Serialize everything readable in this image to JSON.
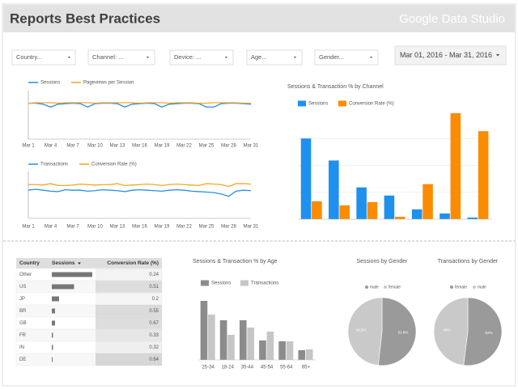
{
  "header": {
    "title": "Reports Best Practices",
    "logo": "Google Data Studio"
  },
  "filters": [
    "Country...",
    "Channel: ...",
    "Device: ...",
    "Age...",
    "Gender..."
  ],
  "date_range": "Mar 01, 2016 - Mar 31, 2016",
  "chart_data": [
    {
      "type": "line",
      "categories": [
        "Mar 1",
        null,
        null,
        "Mar 4",
        null,
        null,
        "Mar 7",
        null,
        null,
        "Mar 10",
        null,
        null,
        "Mar 13",
        null,
        null,
        "Mar 16",
        null,
        null,
        "Mar 19",
        null,
        null,
        "Mar 22",
        null,
        null,
        "Mar 25",
        null,
        null,
        "Mar 28",
        null,
        null,
        "Mar 31"
      ],
      "ylim": [
        0,
        100
      ],
      "series": [
        {
          "name": "Sessions",
          "color": "#2a8ee8",
          "values": [
            74,
            74,
            72,
            66,
            72,
            73,
            74,
            73,
            66,
            73,
            74,
            74,
            73,
            66,
            72,
            73,
            74,
            73,
            66,
            72,
            73,
            74,
            74,
            73,
            66,
            66,
            73,
            74,
            74,
            73,
            72
          ]
        },
        {
          "name": "Pageviews per Session",
          "color": "#f5a623",
          "values": [
            74,
            75,
            75,
            75,
            74,
            75,
            75,
            75,
            75,
            74,
            75,
            75,
            75,
            75,
            75,
            74,
            75,
            75,
            75,
            74,
            75,
            75,
            75,
            74,
            74,
            75,
            75,
            75,
            75,
            74,
            74
          ]
        }
      ]
    },
    {
      "type": "line",
      "categories": [
        "Mar 1",
        null,
        null,
        "Mar 4",
        null,
        null,
        "Mar 7",
        null,
        null,
        "Mar 10",
        null,
        null,
        "Mar 13",
        null,
        null,
        "Mar 16",
        null,
        null,
        "Mar 19",
        null,
        null,
        "Mar 22",
        null,
        null,
        "Mar 25",
        null,
        null,
        "Mar 28",
        null,
        null,
        "Mar 31"
      ],
      "ylim": [
        0,
        100
      ],
      "series": [
        {
          "name": "Transactions",
          "color": "#2a8ee8",
          "values": [
            60,
            62,
            60,
            58,
            57,
            61,
            60,
            60,
            58,
            59,
            61,
            60,
            59,
            57,
            60,
            61,
            60,
            59,
            58,
            60,
            61,
            60,
            58,
            57,
            56,
            55,
            52,
            47,
            58,
            60,
            59
          ]
        },
        {
          "name": "Conversion Rate (%)",
          "color": "#f5a623",
          "values": [
            72,
            72,
            71,
            74,
            70,
            70,
            71,
            73,
            72,
            71,
            72,
            72,
            74,
            70,
            71,
            72,
            73,
            72,
            70,
            72,
            73,
            72,
            71,
            70,
            74,
            73,
            72,
            68,
            74,
            74,
            73
          ]
        }
      ]
    },
    {
      "type": "bar",
      "title": "Sessions & Transaction % by Channel",
      "categories": [
        null,
        null,
        null,
        null,
        null,
        null,
        null
      ],
      "ylim": [
        0,
        130
      ],
      "yticks": [
        0,
        33,
        66,
        99,
        132
      ],
      "grid": true,
      "series": [
        {
          "name": "Sessions",
          "color": "#1e90f0",
          "values": [
            99,
            72,
            39,
            29,
            12,
            7,
            2
          ]
        },
        {
          "name": "Conversion Rate (%)",
          "color": "#fb8c00",
          "values": [
            22,
            17,
            21,
            3,
            43,
            130,
            108
          ]
        }
      ]
    },
    {
      "type": "bar",
      "title": "Sessions & Transaction % by Age",
      "categories": [
        "25-34",
        "18-24",
        "35-44",
        "45-54",
        "55-64",
        "65+"
      ],
      "ylim": [
        0,
        95
      ],
      "grid": false,
      "series": [
        {
          "name": "Sessions",
          "color": "#8c8c8c",
          "values": [
            73,
            49,
            49,
            24,
            23,
            12
          ]
        },
        {
          "name": "Transactions",
          "color": "#c6c6c6",
          "values": [
            56,
            31,
            40,
            35,
            23,
            13
          ]
        }
      ]
    },
    {
      "type": "pie",
      "title": "Sessions by Gender",
      "categories": [
        "male",
        "female"
      ],
      "values": [
        51.8,
        48.2
      ],
      "value_labels": [
        "51.8%",
        "48.2%"
      ],
      "colors": [
        "#9a9a9a",
        "#c9c9c9"
      ]
    },
    {
      "type": "pie",
      "title": "Transactions by Gender",
      "categories": [
        "female",
        "male"
      ],
      "values": [
        52,
        48
      ],
      "value_labels": [
        "52%",
        "48%"
      ],
      "colors": [
        "#9a9a9a",
        "#c9c9c9"
      ]
    }
  ],
  "table": {
    "columns": [
      "Country",
      "Sessions",
      "Conversion Rate (%)"
    ],
    "rows": [
      [
        "Other",
        100,
        0.24
      ],
      [
        "US",
        55,
        0.51
      ],
      [
        "JP",
        18,
        0.2
      ],
      [
        "BR",
        8,
        0.55
      ],
      [
        "GB",
        8,
        0.67
      ],
      [
        "FR",
        3,
        0.33
      ],
      [
        "IN",
        3,
        0.32
      ],
      [
        "DE",
        2,
        0.64
      ]
    ]
  }
}
